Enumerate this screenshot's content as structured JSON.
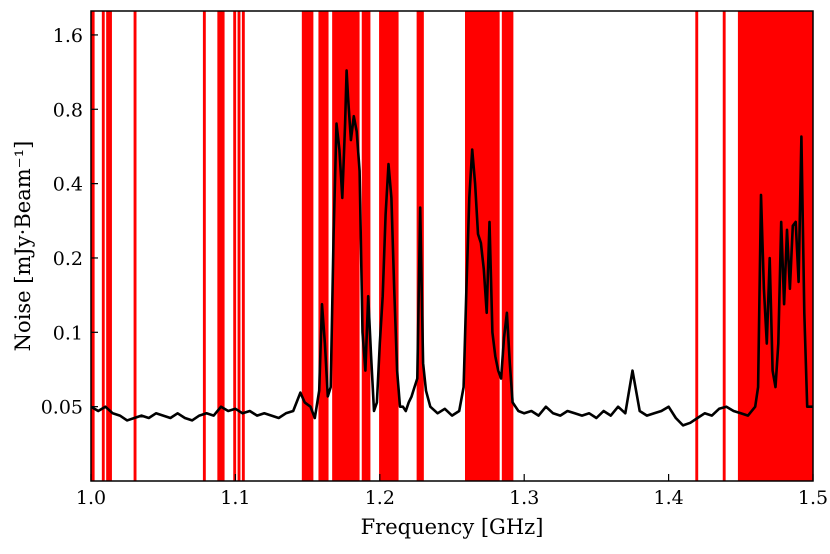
{
  "chart_data": {
    "type": "line",
    "title": "",
    "xlabel": "Frequency [GHz]",
    "ylabel": "Noise [mJy·Beam⁻¹]",
    "xlim": [
      1.0,
      1.5
    ],
    "ylim": [
      0.025,
      2.0
    ],
    "yscale": "log",
    "x_ticks": [
      {
        "value": 1.0,
        "label": "1.0"
      },
      {
        "value": 1.1,
        "label": "1.1"
      },
      {
        "value": 1.2,
        "label": "1.2"
      },
      {
        "value": 1.3,
        "label": "1.3"
      },
      {
        "value": 1.4,
        "label": "1.4"
      },
      {
        "value": 1.5,
        "label": "1.5"
      }
    ],
    "y_ticks": [
      {
        "value": 0.05,
        "label": "0.05"
      },
      {
        "value": 0.1,
        "label": "0.1"
      },
      {
        "value": 0.2,
        "label": "0.2"
      },
      {
        "value": 0.4,
        "label": "0.4"
      },
      {
        "value": 0.8,
        "label": "0.8"
      },
      {
        "value": 1.6,
        "label": "1.6"
      }
    ],
    "grid": false,
    "line_color": "#000000",
    "flag_color": "#ff0000",
    "flagged_ranges": [
      [
        1.0,
        1.0025
      ],
      [
        1.0075,
        1.0095
      ],
      [
        1.0105,
        1.0145
      ],
      [
        1.0295,
        1.0315
      ],
      [
        1.0775,
        1.0795
      ],
      [
        1.0875,
        1.0925
      ],
      [
        1.0985,
        1.1005
      ],
      [
        1.1015,
        1.1035
      ],
      [
        1.1045,
        1.1065
      ],
      [
        1.146,
        1.154
      ],
      [
        1.1575,
        1.1645
      ],
      [
        1.167,
        1.186
      ],
      [
        1.1875,
        1.1935
      ],
      [
        1.1995,
        1.213
      ],
      [
        1.2255,
        1.2305
      ],
      [
        1.259,
        1.283
      ],
      [
        1.2845,
        1.2925
      ],
      [
        1.4185,
        1.4205
      ],
      [
        1.4375,
        1.4395
      ],
      [
        1.448,
        1.5
      ]
    ],
    "series": [
      {
        "x": [
          1.0,
          1.005,
          1.01,
          1.015,
          1.02,
          1.025,
          1.03,
          1.035,
          1.04,
          1.045,
          1.05,
          1.055,
          1.06,
          1.065,
          1.07,
          1.075,
          1.08,
          1.085,
          1.09,
          1.095,
          1.1,
          1.105,
          1.11,
          1.115,
          1.12,
          1.125,
          1.13,
          1.135,
          1.14,
          1.145,
          1.148,
          1.152,
          1.155,
          1.158,
          1.16,
          1.162,
          1.164,
          1.166,
          1.168,
          1.17,
          1.172,
          1.174,
          1.176,
          1.177,
          1.178,
          1.18,
          1.182,
          1.184,
          1.186,
          1.188,
          1.19,
          1.192,
          1.194,
          1.196,
          1.198,
          1.2,
          1.202,
          1.204,
          1.206,
          1.208,
          1.21,
          1.212,
          1.214,
          1.216,
          1.218,
          1.22,
          1.222,
          1.224,
          1.226,
          1.228,
          1.23,
          1.232,
          1.235,
          1.24,
          1.245,
          1.25,
          1.255,
          1.258,
          1.26,
          1.262,
          1.264,
          1.266,
          1.268,
          1.27,
          1.272,
          1.274,
          1.276,
          1.278,
          1.28,
          1.282,
          1.284,
          1.286,
          1.288,
          1.29,
          1.292,
          1.294,
          1.296,
          1.3,
          1.305,
          1.31,
          1.315,
          1.32,
          1.325,
          1.33,
          1.335,
          1.34,
          1.345,
          1.35,
          1.355,
          1.36,
          1.365,
          1.37,
          1.375,
          1.38,
          1.385,
          1.39,
          1.395,
          1.4,
          1.405,
          1.41,
          1.415,
          1.42,
          1.425,
          1.43,
          1.435,
          1.44,
          1.445,
          1.45,
          1.455,
          1.46,
          1.462,
          1.464,
          1.466,
          1.468,
          1.47,
          1.472,
          1.474,
          1.476,
          1.478,
          1.48,
          1.482,
          1.484,
          1.486,
          1.488,
          1.49,
          1.492,
          1.494,
          1.496,
          1.498,
          1.5
        ],
        "y": [
          0.05,
          0.048,
          0.05,
          0.047,
          0.046,
          0.044,
          0.045,
          0.046,
          0.045,
          0.047,
          0.046,
          0.045,
          0.047,
          0.045,
          0.044,
          0.046,
          0.047,
          0.046,
          0.05,
          0.048,
          0.049,
          0.047,
          0.048,
          0.046,
          0.047,
          0.046,
          0.045,
          0.047,
          0.048,
          0.057,
          0.052,
          0.05,
          0.045,
          0.058,
          0.13,
          0.09,
          0.055,
          0.06,
          0.25,
          0.7,
          0.55,
          0.35,
          0.7,
          1.15,
          0.9,
          0.6,
          0.75,
          0.65,
          0.45,
          0.1,
          0.07,
          0.14,
          0.08,
          0.048,
          0.052,
          0.09,
          0.14,
          0.3,
          0.48,
          0.35,
          0.15,
          0.07,
          0.05,
          0.05,
          0.048,
          0.052,
          0.055,
          0.06,
          0.065,
          0.32,
          0.075,
          0.058,
          0.05,
          0.047,
          0.049,
          0.046,
          0.048,
          0.06,
          0.15,
          0.35,
          0.55,
          0.4,
          0.25,
          0.23,
          0.18,
          0.12,
          0.28,
          0.1,
          0.08,
          0.07,
          0.065,
          0.095,
          0.12,
          0.075,
          0.052,
          0.05,
          0.048,
          0.047,
          0.048,
          0.046,
          0.05,
          0.047,
          0.046,
          0.048,
          0.047,
          0.046,
          0.047,
          0.045,
          0.048,
          0.046,
          0.05,
          0.047,
          0.07,
          0.048,
          0.046,
          0.047,
          0.048,
          0.05,
          0.045,
          0.042,
          0.043,
          0.045,
          0.047,
          0.046,
          0.049,
          0.05,
          0.048,
          0.047,
          0.046,
          0.05,
          0.06,
          0.36,
          0.15,
          0.09,
          0.2,
          0.07,
          0.06,
          0.09,
          0.28,
          0.13,
          0.26,
          0.15,
          0.27,
          0.28,
          0.16,
          0.62,
          0.12,
          0.05,
          0.05,
          0.05
        ]
      }
    ]
  }
}
